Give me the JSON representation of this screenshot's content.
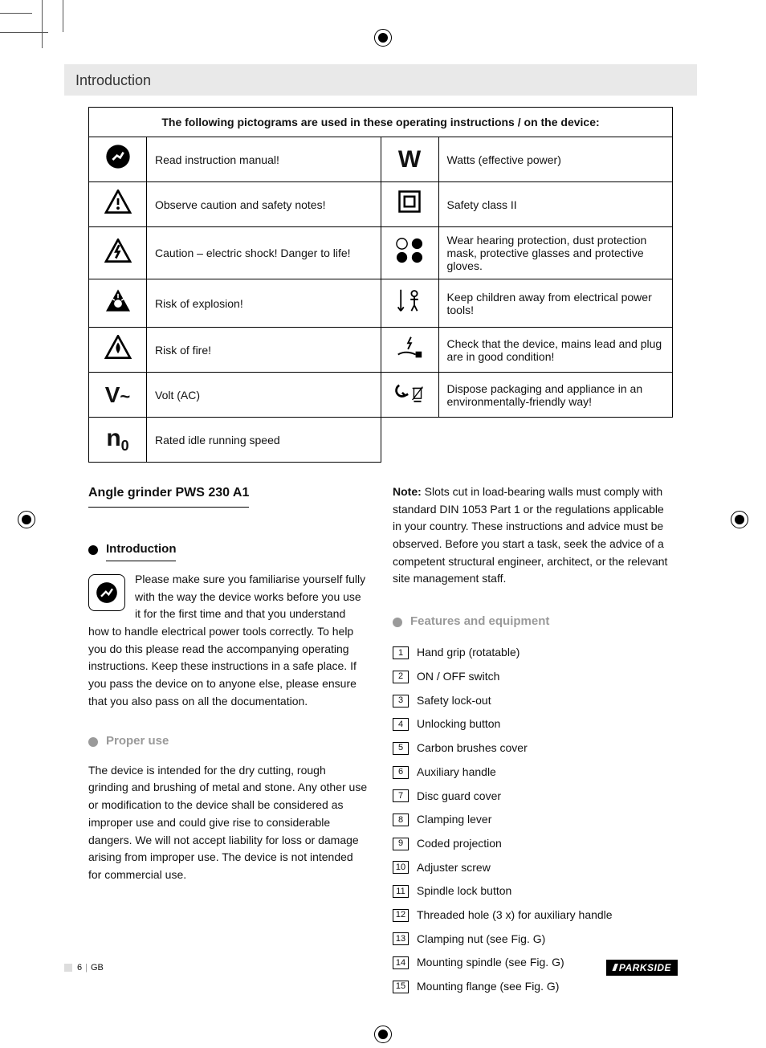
{
  "header": {
    "title": "Introduction"
  },
  "pictograms": {
    "header": "The following pictograms are used in these operating instructions / on the device:",
    "rows_left": [
      {
        "icon": "manual",
        "text": "Read instruction manual!"
      },
      {
        "icon": "caution",
        "text": "Observe caution and safety notes!"
      },
      {
        "icon": "shock",
        "text": "Caution – electric shock! Danger to life!"
      },
      {
        "icon": "explosion",
        "text": "Risk of explosion!"
      },
      {
        "icon": "fire",
        "text": "Risk of fire!"
      },
      {
        "icon": "V~",
        "text": "Volt (AC)"
      },
      {
        "icon": "n0",
        "text": "Rated idle running speed"
      }
    ],
    "rows_right": [
      {
        "icon": "W",
        "text": "Watts (effective power)"
      },
      {
        "icon": "class2",
        "text": "Safety class II"
      },
      {
        "icon": "ppe",
        "text": "Wear hearing protection, dust protection mask, protective glasses and protective gloves."
      },
      {
        "icon": "children",
        "text": "Keep children away from electrical power tools!"
      },
      {
        "icon": "plug",
        "text": "Check that the device, mains lead and plug are in good condition!"
      },
      {
        "icon": "dispose",
        "text": "Dispose packaging and appliance in an environmentally-friendly way!"
      }
    ]
  },
  "product": {
    "title": "Angle grinder PWS 230 A1"
  },
  "sections": {
    "intro": {
      "label": "Introduction",
      "body": "Please make sure you familiarise yourself fully with the way the device works before you use it for the first time and that you understand how to handle electrical power tools correctly. To help you do this please read the accompanying operating instructions. Keep these instructions in a safe place. If you pass the device on to anyone else, please ensure that you also pass on all the documentation."
    },
    "proper_use": {
      "label": "Proper use",
      "body": "The device is intended for the dry cutting, rough grinding and brushing of metal and stone. Any other use or modification to the device shall be considered as improper use and could give rise to considerable dangers. We will not accept liability for loss or damage arising from improper use. The device is not intended for commercial use."
    },
    "note": {
      "label": "Note:",
      "body": "Slots cut in load-bearing walls must comply with standard DIN 1053 Part 1 or the regulations applicable in your country.\nThese instructions and advice must be observed. Before you start a task, seek the advice of a competent structural engineer, architect, or the relevant site management staff."
    },
    "features": {
      "label": "Features and equipment",
      "items": [
        "Hand grip (rotatable)",
        "ON / OFF switch",
        "Safety lock-out",
        "Unlocking button",
        "Carbon brushes cover",
        "Auxiliary handle",
        "Disc guard cover",
        "Clamping lever",
        "Coded projection",
        "Adjuster screw",
        "Spindle lock button",
        "Threaded hole (3 x) for auxiliary handle",
        "Clamping nut (see Fig. G)",
        "Mounting spindle (see Fig. G)",
        "Mounting flange (see Fig. G)"
      ]
    }
  },
  "footer": {
    "page": "6",
    "lang": "GB",
    "brand": "PARKSIDE"
  }
}
